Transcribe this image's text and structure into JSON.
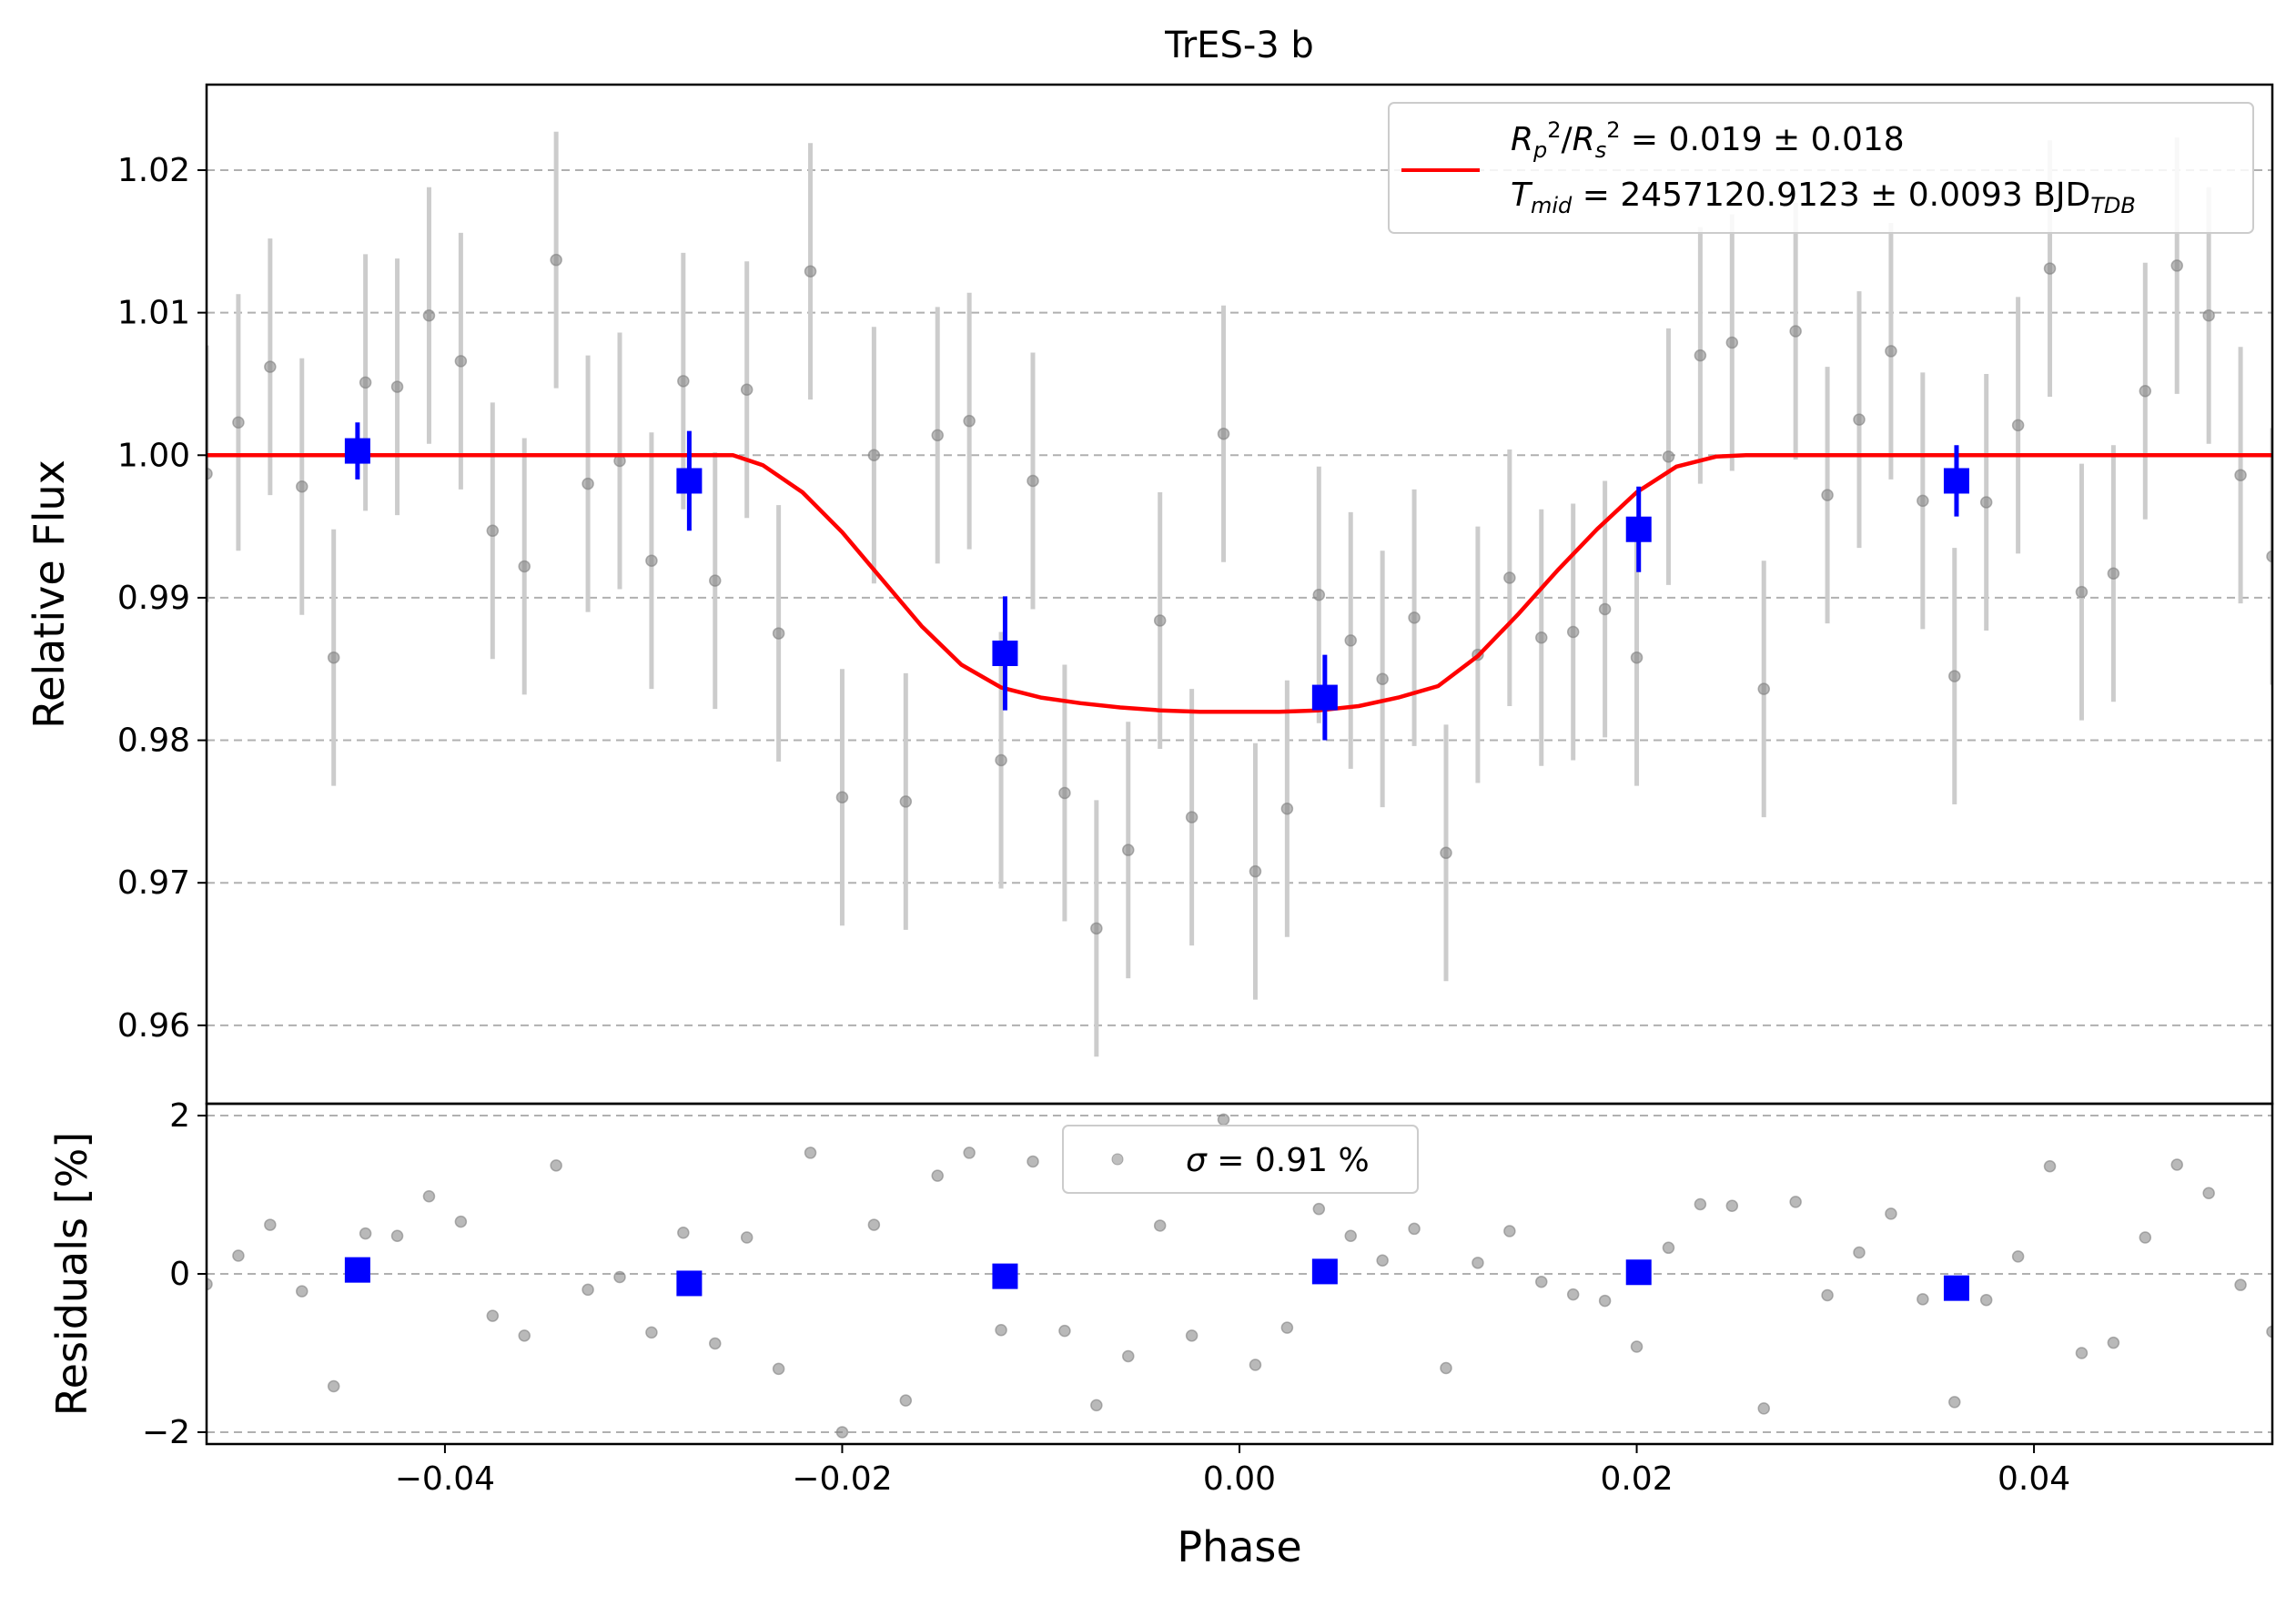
{
  "chart_data": [
    {
      "type": "scatter",
      "title": "TrES-3 b",
      "xlabel": "",
      "ylabel": "Relative Flux",
      "xlim": [
        -0.052,
        0.052
      ],
      "ylim": [
        0.9545,
        1.026
      ],
      "yticks": [
        0.96,
        0.97,
        0.98,
        0.99,
        1.0,
        1.01,
        1.02
      ],
      "ytick_labels": [
        "0.96",
        "0.97",
        "0.98",
        "0.99",
        "1.00",
        "1.01",
        "1.02"
      ],
      "grid": "horizontal dashed",
      "legend": {
        "placement": "top-right",
        "line1": "R_p^2/R_s^2 = 0.019 ± 0.018",
        "line2": "T_mid = 2457120.9123 ± 0.0093 BJD_TDB"
      },
      "colors": {
        "raw": "#808080",
        "errorbar": "#cccccc",
        "binned": "#0000ff",
        "model": "#ff0000"
      },
      "series": [
        {
          "kind": "raw",
          "x": [
            -0.052,
            -0.0504,
            -0.0488,
            -0.0472,
            -0.0456,
            -0.044,
            -0.0424,
            -0.0408,
            -0.0392,
            -0.0376,
            -0.036,
            -0.0344,
            -0.0328,
            -0.0312,
            -0.0296,
            -0.028,
            -0.0264,
            -0.0248,
            -0.0232,
            -0.0216,
            -0.02,
            -0.0184,
            -0.0168,
            -0.0152,
            -0.0136,
            -0.012,
            -0.0104,
            -0.0088,
            -0.0072,
            -0.0056,
            -0.004,
            -0.0024,
            -0.0008,
            0.0008,
            0.0024,
            0.004,
            0.0056,
            0.0072,
            0.0088,
            0.0104,
            0.012,
            0.0136,
            0.0152,
            0.0168,
            0.0184,
            0.02,
            0.0216,
            0.0232,
            0.0248,
            0.0264,
            0.028,
            0.0296,
            0.0312,
            0.0328,
            0.0344,
            0.036,
            0.0376,
            0.0392,
            0.0408,
            0.0424,
            0.044,
            0.0456,
            0.0472,
            0.0488,
            0.0504,
            0.052
          ],
          "y": [
            0.9987,
            1.0023,
            1.0062,
            0.9978,
            0.9858,
            1.0051,
            1.0048,
            1.0098,
            1.0066,
            0.9947,
            0.9922,
            1.0137,
            0.998,
            0.9996,
            0.9926,
            1.0052,
            0.9912,
            1.0046,
            0.9875,
            1.0129,
            0.976,
            1.0,
            0.9757,
            1.0014,
            1.0024,
            0.9786,
            0.9982,
            0.9763,
            0.9668,
            0.9723,
            0.9884,
            0.9746,
            1.0015,
            0.9708,
            0.9752,
            0.9902,
            0.987,
            0.9843,
            0.9886,
            0.9721,
            0.986,
            0.9914,
            0.9872,
            0.9876,
            0.9892,
            0.9858,
            0.9999,
            1.007,
            1.0079,
            0.9836,
            1.0087,
            0.9972,
            1.0025,
            1.0073,
            0.9968,
            0.9845,
            0.9967,
            1.0021,
            1.0131,
            0.9904,
            0.9917,
            1.0045,
            1.0133,
            1.0098,
            0.9986,
            0.9929
          ],
          "yerr": 0.009
        },
        {
          "kind": "binned",
          "x": [
            -0.0444,
            -0.0277,
            -0.0118,
            0.0043,
            0.0201,
            0.0361
          ],
          "y": [
            1.0003,
            0.9982,
            0.9861,
            0.983,
            0.9948,
            0.9982
          ],
          "yerr": [
            0.002,
            0.0035,
            0.004,
            0.003,
            0.003,
            0.0025
          ]
        },
        {
          "kind": "model",
          "name": "R_p^2/R_s^2 = 0.019 ± 0.018 | T_mid = 2457120.9123 ± 0.0093 BJD_TDB",
          "x": [
            -0.052,
            -0.0255,
            -0.024,
            -0.022,
            -0.02,
            -0.018,
            -0.016,
            -0.014,
            -0.012,
            -0.01,
            -0.008,
            -0.006,
            -0.004,
            -0.002,
            0.0,
            0.002,
            0.004,
            0.006,
            0.008,
            0.01,
            0.012,
            0.014,
            0.016,
            0.018,
            0.02,
            0.022,
            0.024,
            0.0255,
            0.052
          ],
          "y": [
            1.0,
            1.0,
            0.9993,
            0.9974,
            0.9946,
            0.9913,
            0.988,
            0.9853,
            0.9837,
            0.983,
            0.9826,
            0.9823,
            0.9821,
            0.982,
            0.982,
            0.982,
            0.9821,
            0.9824,
            0.983,
            0.9838,
            0.9859,
            0.9888,
            0.9919,
            0.9948,
            0.9974,
            0.9992,
            0.9999,
            1.0,
            1.0
          ]
        }
      ]
    },
    {
      "type": "scatter",
      "title": "",
      "xlabel": "Phase",
      "ylabel": "Residuals [%]",
      "xlim": [
        -0.052,
        0.052
      ],
      "ylim": [
        -2.15,
        2.15
      ],
      "xticks": [
        -0.04,
        -0.02,
        0.0,
        0.02,
        0.04
      ],
      "xtick_labels": [
        "−0.04",
        "−0.02",
        "0.00",
        "0.02",
        "0.04"
      ],
      "yticks": [
        -2,
        0,
        2
      ],
      "ytick_labels": [
        "−2",
        "0",
        "2"
      ],
      "grid": "horizontal dashed",
      "legend": {
        "placement": "top-center",
        "text": "σ = 0.91 %"
      },
      "series": [
        {
          "kind": "raw",
          "x": [
            -0.052,
            -0.0504,
            -0.0488,
            -0.0472,
            -0.0456,
            -0.044,
            -0.0424,
            -0.0408,
            -0.0392,
            -0.0376,
            -0.036,
            -0.0344,
            -0.0328,
            -0.0312,
            -0.0296,
            -0.028,
            -0.0264,
            -0.0248,
            -0.0232,
            -0.0216,
            -0.02,
            -0.0184,
            -0.0168,
            -0.0152,
            -0.0136,
            -0.012,
            -0.0104,
            -0.0088,
            -0.0072,
            -0.0056,
            -0.004,
            -0.0024,
            -0.0008,
            0.0008,
            0.0024,
            0.004,
            0.0056,
            0.0072,
            0.0088,
            0.0104,
            0.012,
            0.0136,
            0.0152,
            0.0168,
            0.0184,
            0.02,
            0.0216,
            0.0232,
            0.0248,
            0.0264,
            0.028,
            0.0296,
            0.0312,
            0.0328,
            0.0344,
            0.036,
            0.0376,
            0.0392,
            0.0408,
            0.0424,
            0.044,
            0.0456,
            0.0472,
            0.0488,
            0.0504,
            0.052
          ],
          "y": [
            -0.13,
            0.23,
            0.62,
            -0.22,
            -1.42,
            0.51,
            0.48,
            0.98,
            0.66,
            -0.53,
            -0.78,
            1.37,
            -0.2,
            -0.04,
            -0.74,
            0.52,
            -0.88,
            0.46,
            -1.2,
            1.53,
            -2.0,
            0.62,
            -1.6,
            1.24,
            1.53,
            -0.71,
            1.42,
            -0.72,
            -1.66,
            -1.04,
            0.61,
            -0.78,
            1.95,
            -1.15,
            -0.68,
            0.82,
            0.48,
            0.17,
            0.57,
            -1.19,
            0.14,
            0.54,
            -0.1,
            -0.26,
            -0.34,
            -0.92,
            0.33,
            0.88,
            0.86,
            -1.7,
            0.91,
            -0.27,
            0.27,
            0.76,
            -0.32,
            -1.62,
            -0.33,
            0.22,
            1.36,
            -1.0,
            -0.87,
            0.46,
            1.38,
            1.02,
            -0.14,
            -0.73
          ]
        },
        {
          "kind": "binned",
          "x": [
            -0.0444,
            -0.0277,
            -0.0118,
            0.0043,
            0.0201,
            0.0361
          ],
          "y": [
            0.05,
            -0.12,
            -0.03,
            0.03,
            0.02,
            -0.18
          ]
        }
      ]
    }
  ]
}
